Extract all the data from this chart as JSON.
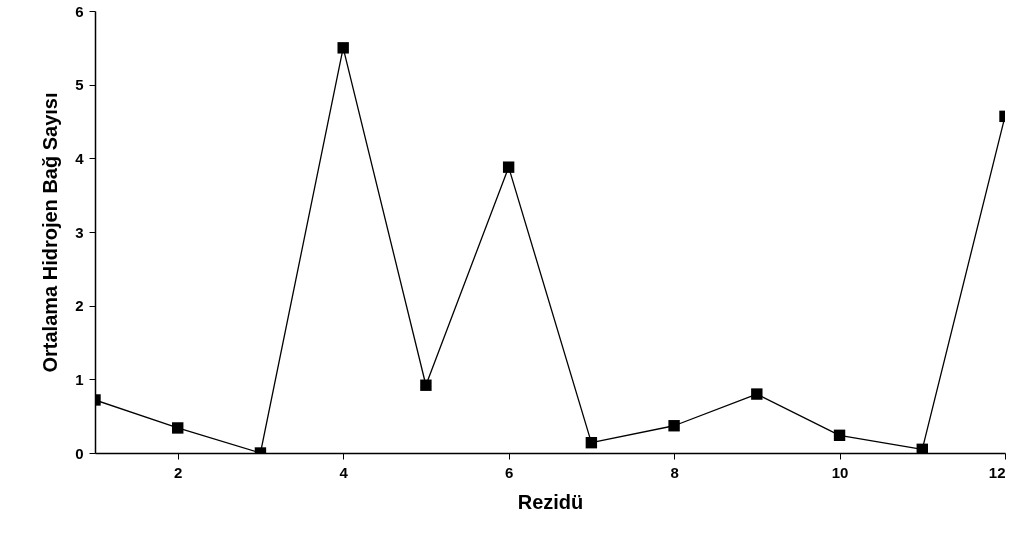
{
  "chart_data": {
    "type": "line",
    "xlabel": "Rezidü",
    "ylabel": "Ortalama Hidrojen Bağ Sayısı",
    "x": [
      1,
      2,
      3,
      4,
      5,
      6,
      7,
      8,
      9,
      10,
      11,
      12
    ],
    "series": [
      {
        "color": "#000000",
        "values": [
          0.72,
          0.34,
          0,
          5.5,
          0.92,
          3.88,
          0.14,
          0.37,
          0.8,
          0.24,
          0.05,
          4.57
        ]
      }
    ],
    "xlim": [
      1,
      12
    ],
    "xticks": [
      2,
      4,
      6,
      8,
      10,
      12
    ],
    "ylim": [
      0,
      6
    ],
    "yticks": [
      0,
      1,
      2,
      3,
      4,
      5,
      6
    ],
    "grid": false,
    "marker": "square",
    "line_style": "solid"
  }
}
